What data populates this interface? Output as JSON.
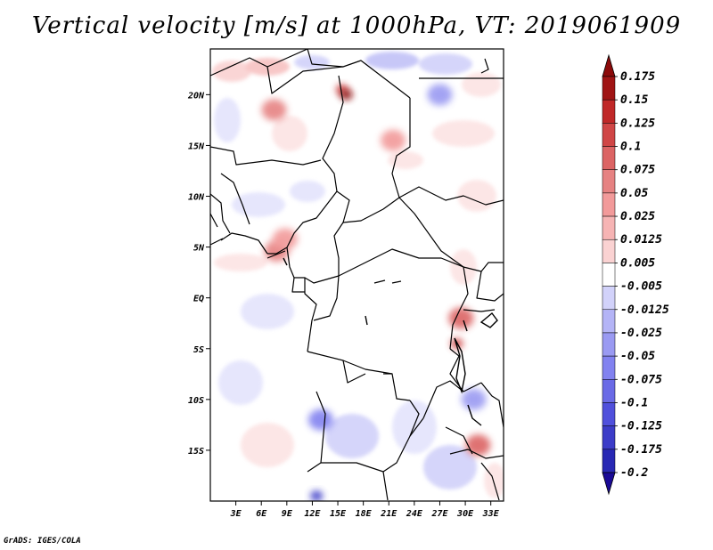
{
  "title": "Vertical velocity [m/s] at 1000hPa, VT: 2019061909",
  "credit": "GrADS: IGES/COLA",
  "map": {
    "lon_range": [
      0,
      34.5
    ],
    "lat_range": [
      -20,
      24.5
    ],
    "x_ticks": [
      {
        "value": 3,
        "label": "3E"
      },
      {
        "value": 6,
        "label": "6E"
      },
      {
        "value": 9,
        "label": "9E"
      },
      {
        "value": 12,
        "label": "12E"
      },
      {
        "value": 15,
        "label": "15E"
      },
      {
        "value": 18,
        "label": "18E"
      },
      {
        "value": 21,
        "label": "21E"
      },
      {
        "value": 24,
        "label": "24E"
      },
      {
        "value": 27,
        "label": "27E"
      },
      {
        "value": 30,
        "label": "30E"
      },
      {
        "value": 33,
        "label": "33E"
      }
    ],
    "y_ticks": [
      {
        "value": 20,
        "label": "20N"
      },
      {
        "value": 15,
        "label": "15N"
      },
      {
        "value": 10,
        "label": "10N"
      },
      {
        "value": 5,
        "label": "5N"
      },
      {
        "value": 0,
        "label": "EQ"
      },
      {
        "value": -5,
        "label": "5S"
      },
      {
        "value": -10,
        "label": "10S"
      },
      {
        "value": -15,
        "label": "15S"
      }
    ]
  },
  "colorbar": {
    "levels": [
      "-0.2",
      "-0.175",
      "-0.125",
      "-0.1",
      "-0.075",
      "-0.05",
      "-0.025",
      "-0.0125",
      "-0.005",
      "0.005",
      "0.0125",
      "0.025",
      "0.05",
      "0.075",
      "0.1",
      "0.125",
      "0.15",
      "0.175"
    ],
    "colors": [
      "#1a0a96",
      "#2828b4",
      "#3c3cc8",
      "#5050dc",
      "#6a6ae6",
      "#8282f0",
      "#9a9af2",
      "#b4b4f6",
      "#d2d2fa",
      "#ffffff",
      "#fad2d2",
      "#f6b4b4",
      "#f29a9a",
      "#e68282",
      "#dc6464",
      "#d04646",
      "#c02828",
      "#a01414",
      "#8c0a0a"
    ]
  },
  "features": [
    {
      "label": "",
      "lon": 27,
      "lat": 20,
      "w": -0.05
    },
    {
      "label": "",
      "lon": 7.5,
      "lat": 18.5,
      "w": 0.05
    },
    {
      "label": "",
      "lon": 15.5,
      "lat": 20.5,
      "w": 0.1
    },
    {
      "label": "",
      "lon": 16,
      "lat": 20,
      "w": 0.175
    },
    {
      "label": "",
      "lon": 29.5,
      "lat": -2,
      "w": 0.075
    },
    {
      "label": "",
      "lon": 29,
      "lat": -4.5,
      "w": 0.1
    },
    {
      "label": "",
      "lon": 12.5,
      "lat": -19.5,
      "w": -0.175
    },
    {
      "label": "",
      "lon": 13,
      "lat": -12,
      "w": -0.075
    },
    {
      "label": "",
      "lon": 31,
      "lat": -10,
      "w": -0.05
    },
    {
      "label": "",
      "lon": 31.5,
      "lat": -14.5,
      "w": 0.075
    },
    {
      "label": "",
      "lon": 7.8,
      "lat": 4.6,
      "w": 0.05
    },
    {
      "label": "",
      "lon": 8.8,
      "lat": 5.8,
      "w": 0.025
    },
    {
      "label": "",
      "lon": 21.5,
      "lat": 15.5,
      "w": 0.025
    }
  ]
}
